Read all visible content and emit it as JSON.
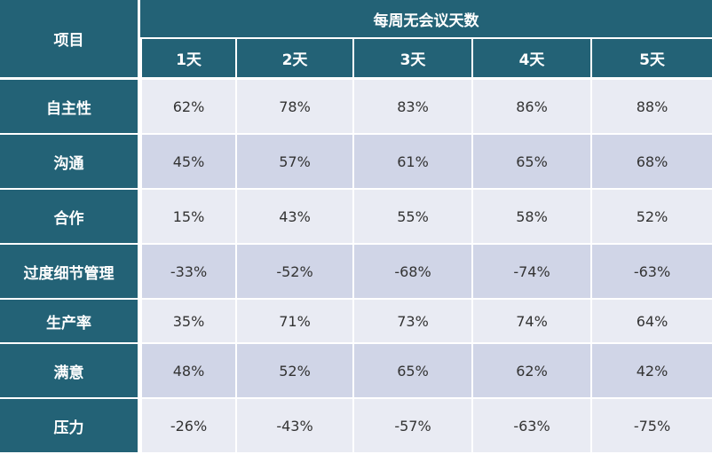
{
  "table": {
    "corner_label": "项目",
    "group_header": "每周无会议天数",
    "columns": [
      "1天",
      "2天",
      "3天",
      "4天",
      "5天"
    ],
    "rows": [
      {
        "label": "自主性",
        "values": [
          "62%",
          "78%",
          "83%",
          "86%",
          "88%"
        ]
      },
      {
        "label": "沟通",
        "values": [
          "45%",
          "57%",
          "61%",
          "65%",
          "68%"
        ]
      },
      {
        "label": "合作",
        "values": [
          "15%",
          "43%",
          "55%",
          "58%",
          "52%"
        ]
      },
      {
        "label": "过度细节管理",
        "values": [
          "-33%",
          "-52%",
          "-68%",
          "-74%",
          "-63%"
        ]
      },
      {
        "label": "生产率",
        "values": [
          "35%",
          "71%",
          "73%",
          "74%",
          "64%"
        ]
      },
      {
        "label": "满意",
        "values": [
          "48%",
          "52%",
          "65%",
          "62%",
          "42%"
        ]
      },
      {
        "label": "压力",
        "values": [
          "-26%",
          "-43%",
          "-57%",
          "-63%",
          "-75%"
        ]
      }
    ]
  },
  "colors": {
    "header_bg": "#236276",
    "row_light": "#e9ebf3",
    "row_dark": "#d0d5e7"
  }
}
